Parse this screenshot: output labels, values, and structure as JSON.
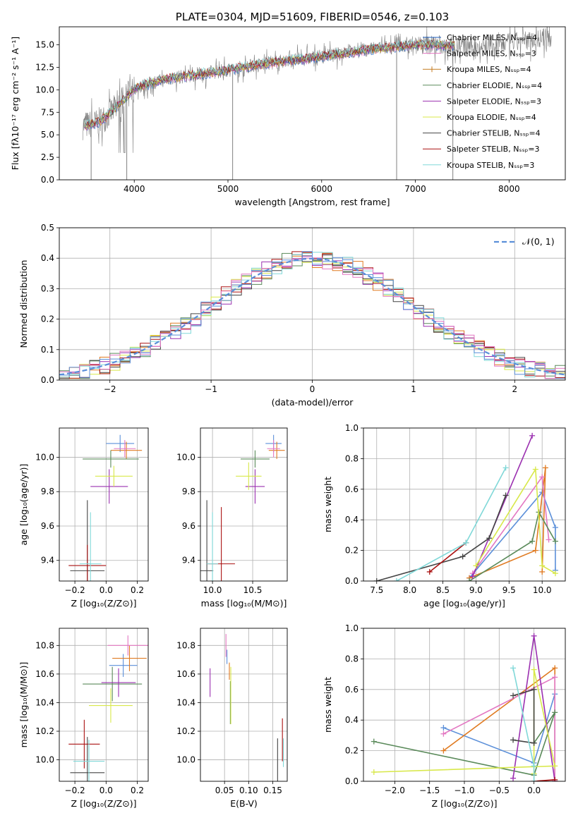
{
  "colors": [
    "#1f5fbf",
    "#e07b22",
    "#d63a3a",
    "#8e44ad",
    "#6a8cc7",
    "#e07b22",
    "#999999",
    "#c7d93b",
    "#1f9fbf"
  ],
  "chart_data": [
    {
      "id": "spectrum",
      "type": "line",
      "title": "PLATE=0304, MJD=51609, FIBERID=0546, z=0.103",
      "xlabel": "wavelength [Angstrom, rest frame]",
      "ylabel": "Flux [fλ10⁻¹⁷ erg cm⁻² s⁻¹ A⁻¹]",
      "xlim": [
        3200,
        8600
      ],
      "ylim": [
        0,
        17
      ],
      "xticks": [
        4000,
        5000,
        6000,
        7000,
        8000
      ],
      "yticks": [
        0.0,
        2.5,
        5.0,
        7.5,
        10.0,
        12.5,
        15.0
      ],
      "ytick_labels": [
        "0.0",
        "2.5",
        "5.0",
        "7.5",
        "10.0",
        "12.5",
        "15.0"
      ],
      "grid": false,
      "legend_position": "bottom-right",
      "continuum": {
        "x": [
          3450,
          3600,
          3700,
          3800,
          3900,
          4000,
          4200,
          4400,
          4600,
          4800,
          5000,
          5200,
          5400,
          5600,
          5800,
          6000,
          6200,
          6400,
          6600,
          6800,
          7000,
          7200,
          7400,
          7600,
          7800,
          8000,
          8200,
          8400
        ],
        "y": [
          6.0,
          6.3,
          7.0,
          8.0,
          9.0,
          10.2,
          10.8,
          11.3,
          11.6,
          11.9,
          12.2,
          12.6,
          12.9,
          13.2,
          13.4,
          13.7,
          14.0,
          14.3,
          14.6,
          14.8,
          15.0,
          15.0,
          14.9,
          14.8,
          14.9,
          15.2,
          15.5,
          15.8
        ]
      },
      "series": [
        {
          "name": "Chabrier MILES, Nₛₛₚ=4",
          "color": "#1f5fbf",
          "marker": "line"
        },
        {
          "name": "Salpeter MILES, Nₛₛₚ=3",
          "color": "#e377c2",
          "marker": "line"
        },
        {
          "name": "Kroupa MILES, Nₛₛₚ=4",
          "color": "#c47a1f",
          "marker": "plus"
        },
        {
          "name": "Chabrier ELODIE, Nₛₛₚ=4",
          "color": "#5a8a5a",
          "marker": "line"
        },
        {
          "name": "Salpeter ELODIE, Nₛₛₚ=3",
          "color": "#9b30b0",
          "marker": "line"
        },
        {
          "name": "Kroupa ELODIE, Nₛₛₚ=4",
          "color": "#d8e84a",
          "marker": "line"
        },
        {
          "name": "Chabrier STELIB, Nₛₛₚ=4",
          "color": "#444444",
          "marker": "line"
        },
        {
          "name": "Salpeter STELIB, Nₛₛₚ=3",
          "color": "#aa1111",
          "marker": "line"
        },
        {
          "name": "Kroupa STELIB, Nₛₛₚ=3",
          "color": "#80d8d8",
          "marker": "line"
        }
      ]
    },
    {
      "id": "residuals",
      "type": "line",
      "xlabel": "(data-model)/error",
      "ylabel": "Normed distribution",
      "xlim": [
        -2.5,
        2.5
      ],
      "ylim": [
        0,
        0.5
      ],
      "xticks": [
        -2,
        -1,
        0,
        1,
        2
      ],
      "xtick_labels": [
        "−2",
        "−1",
        "0",
        "1",
        "2"
      ],
      "yticks": [
        0.0,
        0.1,
        0.2,
        0.3,
        0.4,
        0.5
      ],
      "ytick_labels": [
        "0.0",
        "0.1",
        "0.2",
        "0.3",
        "0.4",
        "0.5"
      ],
      "grid": true,
      "legend_position": "top-right",
      "legend": "𝒩(0, 1)",
      "normal_color": "#5b8fd9"
    },
    {
      "id": "z-age",
      "type": "scatter",
      "xlabel": "Z [log₁₀(Z/Z⊙)]",
      "ylabel": "age  [log₁₀(age/yr)]",
      "xlim": [
        -0.3,
        0.27
      ],
      "ylim": [
        9.28,
        10.17
      ],
      "xticks": [
        -0.2,
        0.0,
        0.2
      ],
      "xtick_labels": [
        "−0.2",
        "0.0",
        "0.2"
      ],
      "yticks": [
        9.4,
        9.6,
        9.8,
        10.0
      ],
      "ytick_labels": [
        "9.4",
        "9.6",
        "9.8",
        "10.0"
      ],
      "grid": true,
      "points": [
        {
          "x": 0.09,
          "y": 10.08,
          "xerr": 0.09,
          "yerr": 0.05,
          "color": "#5b8fd9"
        },
        {
          "x": 0.13,
          "y": 10.04,
          "xerr": 0.1,
          "yerr": 0.05,
          "color": "#e07b22"
        },
        {
          "x": 0.12,
          "y": 10.05,
          "xerr": 0.07,
          "yerr": 0.05,
          "color": "#e377c2"
        },
        {
          "x": 0.03,
          "y": 9.99,
          "xerr": 0.18,
          "yerr": 0.05,
          "color": "#5a8a5a"
        },
        {
          "x": 0.02,
          "y": 9.83,
          "xerr": 0.12,
          "yerr": 0.1,
          "color": "#9b30b0"
        },
        {
          "x": 0.05,
          "y": 9.89,
          "xerr": 0.12,
          "yerr": 0.06,
          "color": "#d8e84a"
        },
        {
          "x": -0.12,
          "y": 9.34,
          "xerr": 0.11,
          "yerr": 0.41,
          "color": "#444444"
        },
        {
          "x": -0.12,
          "y": 9.37,
          "xerr": 0.12,
          "yerr": 0.12,
          "color": "#aa1111"
        },
        {
          "x": -0.1,
          "y": 9.38,
          "xerr": 0.07,
          "yerr": 0.3,
          "color": "#80d8d8"
        }
      ]
    },
    {
      "id": "mass-age",
      "type": "scatter",
      "xlabel": "mass [log₁₀(M/M⊙)]",
      "ylabel": "",
      "xlim": [
        9.85,
        10.93
      ],
      "ylim": [
        9.28,
        10.17
      ],
      "xticks": [
        10.0,
        10.5
      ],
      "xtick_labels": [
        "10.0",
        "10.5"
      ],
      "yticks": [
        9.4,
        9.6,
        9.8,
        10.0
      ],
      "ytick_labels": [
        "9.4",
        "9.6",
        "9.8",
        "10.0"
      ],
      "grid": true,
      "points": [
        {
          "x": 10.76,
          "y": 10.08,
          "xerr": 0.1,
          "yerr": 0.05,
          "color": "#5b8fd9"
        },
        {
          "x": 10.8,
          "y": 10.04,
          "xerr": 0.1,
          "yerr": 0.05,
          "color": "#e07b22"
        },
        {
          "x": 10.76,
          "y": 10.05,
          "xerr": 0.08,
          "yerr": 0.05,
          "color": "#e377c2"
        },
        {
          "x": 10.53,
          "y": 9.99,
          "xerr": 0.18,
          "yerr": 0.05,
          "color": "#5a8a5a"
        },
        {
          "x": 10.53,
          "y": 9.83,
          "xerr": 0.12,
          "yerr": 0.1,
          "color": "#9b30b0"
        },
        {
          "x": 10.45,
          "y": 9.89,
          "xerr": 0.16,
          "yerr": 0.08,
          "color": "#d8e84a"
        },
        {
          "x": 9.93,
          "y": 9.34,
          "xerr": 0.08,
          "yerr": 0.41,
          "color": "#444444"
        },
        {
          "x": 10.11,
          "y": 9.38,
          "xerr": 0.17,
          "yerr": 0.33,
          "color": "#aa1111"
        },
        {
          "x": 10.0,
          "y": 9.38,
          "xerr": 0.07,
          "yerr": 0.3,
          "color": "#80d8d8"
        }
      ]
    },
    {
      "id": "age-weight",
      "type": "line",
      "xlabel": "age  [log₁₀(age/yr)]",
      "ylabel": "mass weight",
      "xlim": [
        7.3,
        10.35
      ],
      "ylim": [
        0,
        1
      ],
      "xticks": [
        7.5,
        8.0,
        8.5,
        9.0,
        9.5,
        10.0
      ],
      "xtick_labels": [
        "7.5",
        "8.0",
        "8.5",
        "9.0",
        "9.5",
        "10.0"
      ],
      "yticks": [
        0.0,
        0.2,
        0.4,
        0.6,
        0.8,
        1.0
      ],
      "ytick_labels": [
        "0.0",
        "0.2",
        "0.4",
        "0.6",
        "0.8",
        "1.0"
      ],
      "grid": true,
      "series": [
        {
          "color": "#5b8fd9",
          "x": [
            8.9,
            10.0,
            10.2,
            10.2
          ],
          "y": [
            0.02,
            0.58,
            0.35,
            0.07
          ]
        },
        {
          "color": "#e07b22",
          "x": [
            8.9,
            9.9,
            10.05,
            10.0
          ],
          "y": [
            0.02,
            0.2,
            0.74,
            0.06
          ]
        },
        {
          "color": "#e377c2",
          "x": [
            8.95,
            10.0,
            10.1
          ],
          "y": [
            0.05,
            0.68,
            0.27
          ]
        },
        {
          "color": "#5a8a5a",
          "x": [
            8.9,
            9.85,
            9.95,
            10.2
          ],
          "y": [
            0.0,
            0.26,
            0.45,
            0.26
          ]
        },
        {
          "color": "#9b30b0",
          "x": [
            8.95,
            9.85
          ],
          "y": [
            0.03,
            0.95
          ]
        },
        {
          "color": "#d8e84a",
          "x": [
            9.0,
            9.9,
            10.0,
            10.2
          ],
          "y": [
            0.1,
            0.73,
            0.1,
            0.05
          ]
        },
        {
          "color": "#444444",
          "x": [
            7.5,
            8.8,
            9.2,
            9.45
          ],
          "y": [
            0.0,
            0.16,
            0.28,
            0.56
          ]
        },
        {
          "color": "#aa1111",
          "x": [
            8.3,
            8.85
          ],
          "y": [
            0.06,
            0.25
          ]
        },
        {
          "color": "#80d8d8",
          "x": [
            7.8,
            8.85,
            9.45
          ],
          "y": [
            0.0,
            0.25,
            0.74
          ]
        }
      ]
    },
    {
      "id": "z-mass",
      "type": "scatter",
      "xlabel": "Z [log₁₀(Z/Z⊙)]",
      "ylabel": "mass [log₁₀(M/M⊙)]",
      "xlim": [
        -0.3,
        0.27
      ],
      "ylim": [
        9.85,
        10.92
      ],
      "xticks": [
        -0.2,
        0.0,
        0.2
      ],
      "xtick_labels": [
        "−0.2",
        "0.0",
        "0.2"
      ],
      "yticks": [
        10.0,
        10.2,
        10.4,
        10.6,
        10.8
      ],
      "ytick_labels": [
        "10.0",
        "10.2",
        "10.4",
        "10.6",
        "10.8"
      ],
      "grid": true,
      "points": [
        {
          "x": 0.11,
          "y": 10.66,
          "xerr": 0.09,
          "yerr": 0.08,
          "color": "#5b8fd9"
        },
        {
          "x": 0.15,
          "y": 10.71,
          "xerr": 0.11,
          "yerr": 0.09,
          "color": "#e07b22"
        },
        {
          "x": 0.14,
          "y": 10.8,
          "xerr": 0.13,
          "yerr": 0.07,
          "color": "#e377c2"
        },
        {
          "x": 0.04,
          "y": 10.53,
          "xerr": 0.19,
          "yerr": 0.12,
          "color": "#5a8a5a"
        },
        {
          "x": 0.08,
          "y": 10.54,
          "xerr": 0.11,
          "yerr": 0.1,
          "color": "#9b30b0"
        },
        {
          "x": 0.03,
          "y": 10.38,
          "xerr": 0.14,
          "yerr": 0.12,
          "color": "#d8e84a"
        },
        {
          "x": -0.12,
          "y": 9.91,
          "xerr": 0.11,
          "yerr": 0.25,
          "color": "#444444"
        },
        {
          "x": -0.14,
          "y": 10.11,
          "xerr": 0.1,
          "yerr": 0.17,
          "color": "#aa1111"
        },
        {
          "x": -0.11,
          "y": 9.99,
          "xerr": 0.1,
          "yerr": 0.15,
          "color": "#80d8d8"
        }
      ]
    },
    {
      "id": "ebv-mass",
      "type": "scatter",
      "xlabel": "E(B-V)",
      "ylabel": "",
      "xlim": [
        0.0,
        0.18
      ],
      "ylim": [
        9.85,
        10.92
      ],
      "xticks": [
        0.05,
        0.1,
        0.15
      ],
      "xtick_labels": [
        "0.05",
        "0.10",
        "0.15"
      ],
      "yticks": [
        10.0,
        10.2,
        10.4,
        10.6,
        10.8
      ],
      "ytick_labels": [
        "10.0",
        "10.2",
        "10.4",
        "10.6",
        "10.8"
      ],
      "grid": true,
      "points": [
        {
          "x": 0.055,
          "y": 10.72,
          "xerr": 0.0,
          "yerr": 0.05,
          "color": "#5b8fd9"
        },
        {
          "x": 0.06,
          "y": 10.62,
          "xerr": 0.0,
          "yerr": 0.06,
          "color": "#e07b22"
        },
        {
          "x": 0.053,
          "y": 10.8,
          "xerr": 0.0,
          "yerr": 0.08,
          "color": "#e377c2"
        },
        {
          "x": 0.062,
          "y": 10.4,
          "xerr": 0.0,
          "yerr": 0.15,
          "color": "#5a8a5a"
        },
        {
          "x": 0.02,
          "y": 10.54,
          "xerr": 0.0,
          "yerr": 0.1,
          "color": "#9b30b0"
        },
        {
          "x": 0.063,
          "y": 10.45,
          "xerr": 0.0,
          "yerr": 0.2,
          "color": "#d8e84a"
        },
        {
          "x": 0.16,
          "y": 9.99,
          "xerr": 0.0,
          "yerr": 0.16,
          "color": "#444444"
        },
        {
          "x": 0.17,
          "y": 10.14,
          "xerr": 0.0,
          "yerr": 0.15,
          "color": "#aa1111"
        },
        {
          "x": 0.172,
          "y": 10.05,
          "xerr": 0.0,
          "yerr": 0.1,
          "color": "#80d8d8"
        }
      ]
    },
    {
      "id": "z-weight",
      "type": "line",
      "xlabel": "Z [log₁₀(Z/Z⊙)]",
      "ylabel": "mass weight",
      "xlim": [
        -2.45,
        0.45
      ],
      "ylim": [
        0,
        1
      ],
      "xticks": [
        -2.0,
        -1.5,
        -1.0,
        -0.5,
        0.0
      ],
      "xtick_labels": [
        "−2.0",
        "−1.5",
        "−1.0",
        "−0.5",
        "0.0"
      ],
      "yticks": [
        0.0,
        0.2,
        0.4,
        0.6,
        0.8,
        1.0
      ],
      "ytick_labels": [
        "0.0",
        "0.2",
        "0.4",
        "0.6",
        "0.8",
        "1.0"
      ],
      "grid": true,
      "series": [
        {
          "color": "#5b8fd9",
          "x": [
            -1.3,
            0.0,
            0.3,
            0.3
          ],
          "y": [
            0.35,
            0.12,
            0.57,
            0.0
          ]
        },
        {
          "color": "#e07b22",
          "x": [
            -1.3,
            0.3,
            0.3
          ],
          "y": [
            0.2,
            0.74,
            0.0
          ]
        },
        {
          "color": "#e377c2",
          "x": [
            -1.3,
            0.3,
            0.3
          ],
          "y": [
            0.31,
            0.68,
            0.0
          ]
        },
        {
          "color": "#5a8a5a",
          "x": [
            -2.3,
            0.0,
            0.3,
            0.0
          ],
          "y": [
            0.26,
            0.04,
            0.45,
            0.25
          ]
        },
        {
          "color": "#9b30b0",
          "x": [
            -0.3,
            0.0,
            0.3
          ],
          "y": [
            0.02,
            0.95,
            0.0
          ]
        },
        {
          "color": "#d8e84a",
          "x": [
            -2.3,
            0.3,
            0.0,
            0.0
          ],
          "y": [
            0.06,
            0.1,
            0.73,
            0.05
          ]
        },
        {
          "color": "#444444",
          "x": [
            -0.3,
            0.0,
            0.0,
            -0.3
          ],
          "y": [
            0.27,
            0.25,
            0.6,
            0.56
          ]
        },
        {
          "color": "#aa1111",
          "x": [
            0.0,
            0.3
          ],
          "y": [
            0.0,
            0.01
          ]
        },
        {
          "color": "#80d8d8",
          "x": [
            -0.3,
            0.0,
            0.0
          ],
          "y": [
            0.74,
            0.1,
            0.0
          ]
        }
      ]
    }
  ]
}
